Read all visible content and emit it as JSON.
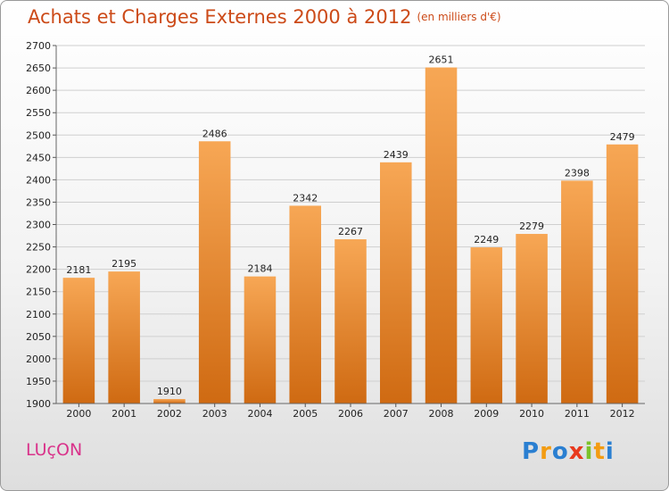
{
  "title": "Achats et Charges Externes 2000 à 2012",
  "unit": "(en milliers d'€)",
  "location": "LUçON",
  "brand": {
    "letters": [
      "P",
      "r",
      "o",
      "x",
      "i",
      "t",
      "i"
    ],
    "colors": [
      "#2a7fd1",
      "#f39c12",
      "#2a7fd1",
      "#e8391d",
      "#7cc22a",
      "#f39c12",
      "#2a7fd1"
    ]
  },
  "colors": {
    "bar_top": "#f7a755",
    "bar_bottom": "#cf6a12",
    "title": "#cc4a18",
    "location": "#d9328a"
  },
  "chart_data": {
    "type": "bar",
    "categories": [
      "2000",
      "2001",
      "2002",
      "2003",
      "2004",
      "2005",
      "2006",
      "2007",
      "2008",
      "2009",
      "2010",
      "2011",
      "2012"
    ],
    "values": [
      2181,
      2195,
      1910,
      2486,
      2184,
      2342,
      2267,
      2439,
      2651,
      2249,
      2279,
      2398,
      2479
    ],
    "ylim": [
      1900,
      2700
    ],
    "yticks": [
      1900,
      1950,
      2000,
      2050,
      2100,
      2150,
      2200,
      2250,
      2300,
      2350,
      2400,
      2450,
      2500,
      2550,
      2600,
      2650,
      2700
    ],
    "grid": true
  }
}
